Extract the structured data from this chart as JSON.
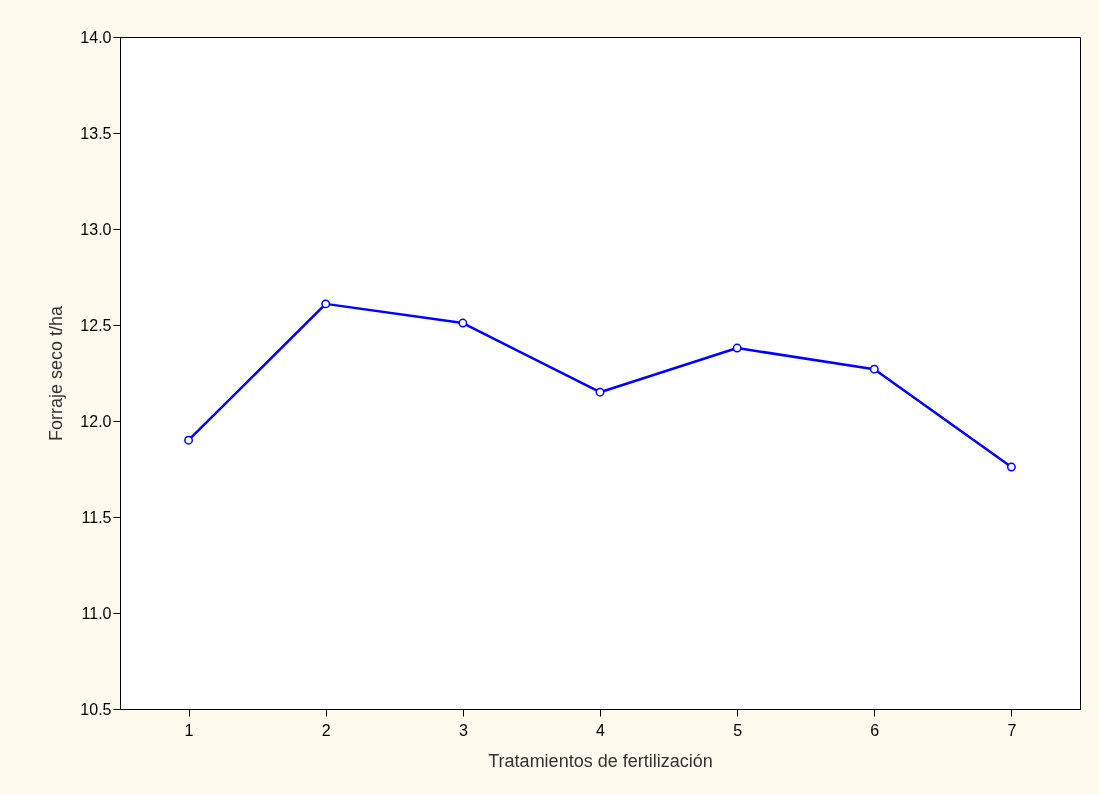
{
  "chart_data": {
    "type": "line",
    "xlabel": "Tratamientos de fertilización",
    "ylabel": "Forraje seco t/ha",
    "categories": [
      "1",
      "2",
      "3",
      "4",
      "5",
      "6",
      "7"
    ],
    "series": [
      {
        "color": "#0000ff",
        "values": [
          11.9,
          12.61,
          12.51,
          12.15,
          12.38,
          12.27,
          11.76
        ]
      }
    ],
    "ylim": [
      10.5,
      14.0
    ],
    "yticks": [
      {
        "value": 10.5,
        "label": "10.5"
      },
      {
        "value": 11,
        "label": "11.0"
      },
      {
        "value": 11.5,
        "label": "11.5"
      },
      {
        "value": 12,
        "label": "12.0"
      },
      {
        "value": 12.5,
        "label": "12.5"
      },
      {
        "value": 13,
        "label": "13.0"
      },
      {
        "value": 13.5,
        "label": "13.5"
      },
      {
        "value": 14,
        "label": "14.0"
      }
    ],
    "grid": false,
    "marker": "circle",
    "line_style": "solid"
  }
}
